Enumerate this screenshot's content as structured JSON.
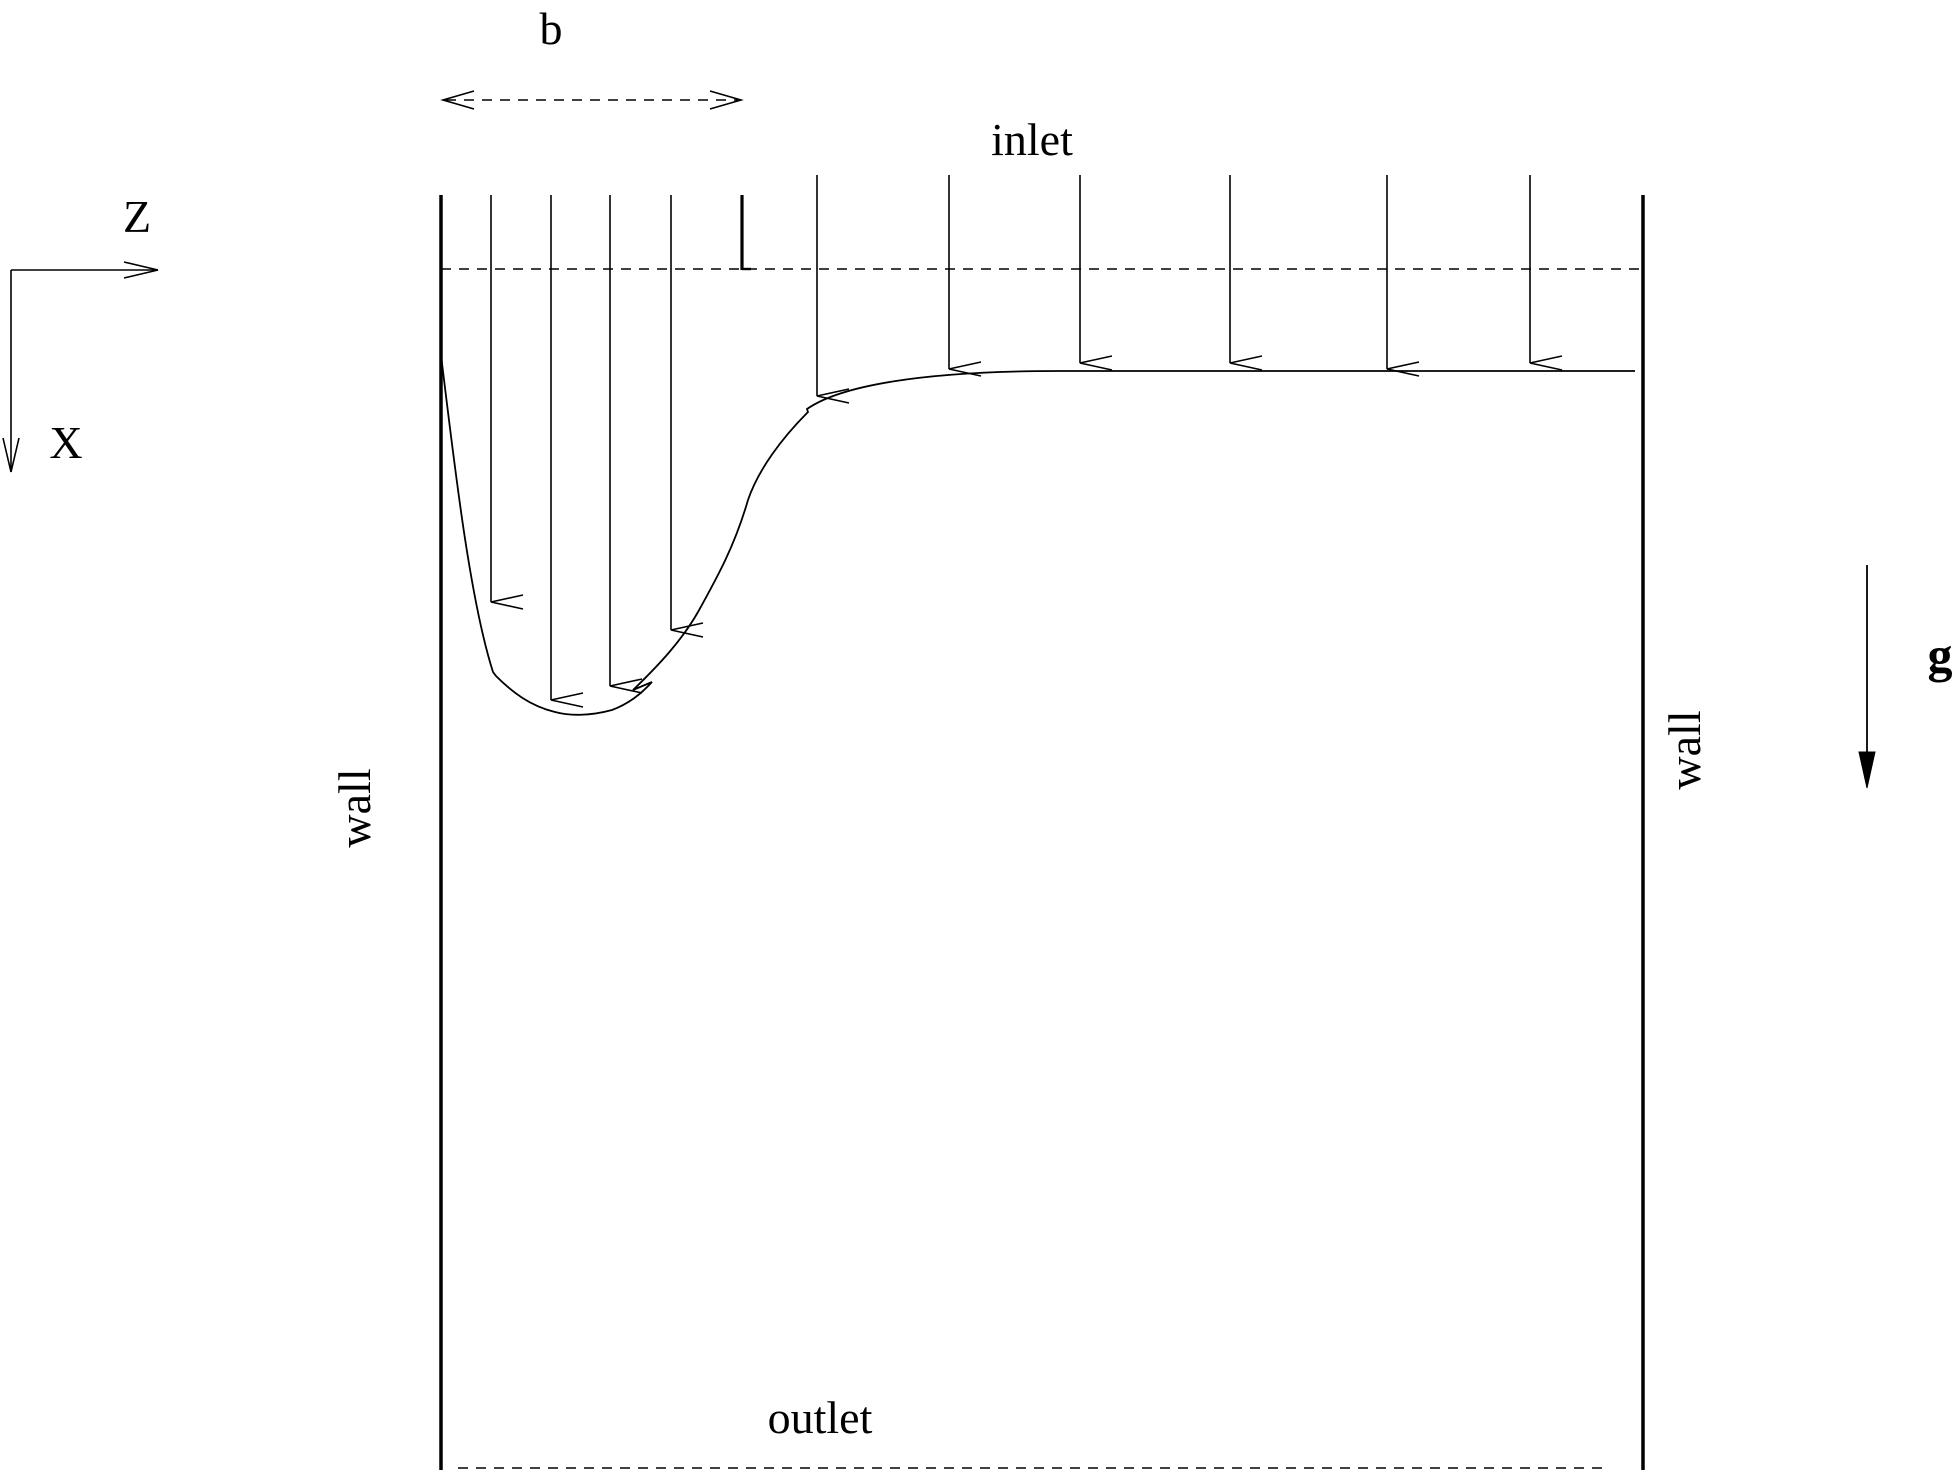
{
  "labels": {
    "b": "b",
    "inlet": "inlet",
    "z": "Z",
    "x": "X",
    "wall_left": "wall",
    "wall_right": "wall",
    "g": "g",
    "outlet": "outlet"
  },
  "colors": {
    "ink": "#000000",
    "background": "#ffffff"
  }
}
